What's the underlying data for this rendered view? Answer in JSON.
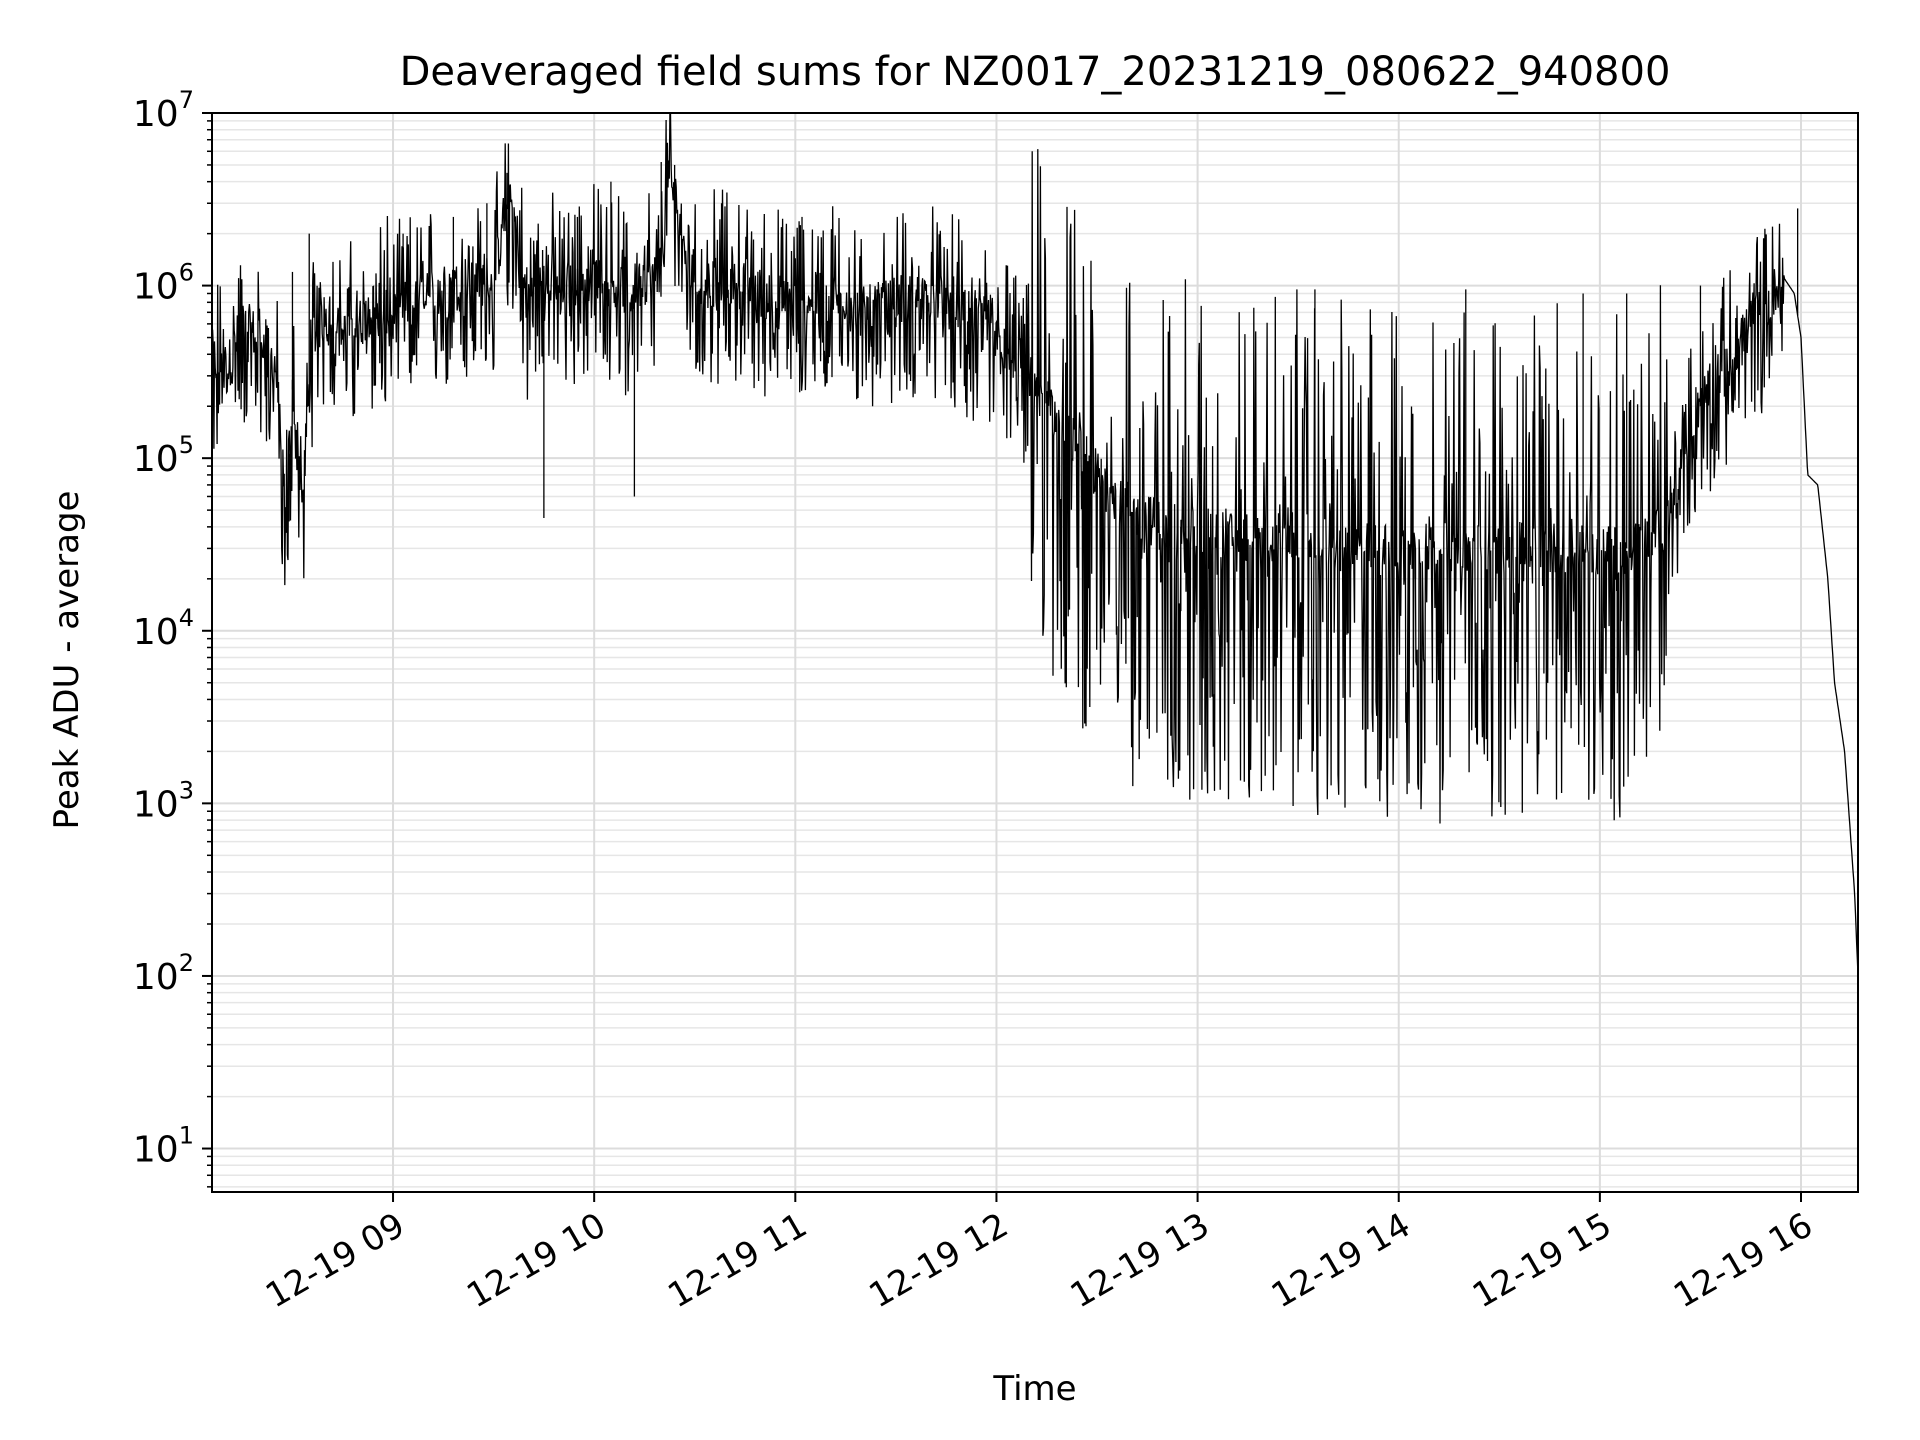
{
  "chart_data": {
    "type": "line",
    "title": "Deaveraged field sums for NZ0017_20231219_080622_940800",
    "xlabel": "Time",
    "ylabel": "Peak ADU - average",
    "y_scale": "log",
    "ylim": [
      5.6,
      10000000
    ],
    "xlim": [
      "2023-12-19 08:06",
      "2023-12-19 16:17"
    ],
    "grid": "major and minor, light gray",
    "line_color": "#000000",
    "x_ticks": [
      {
        "label": "12-19 09",
        "time": "2023-12-19 09:00"
      },
      {
        "label": "12-19 10",
        "time": "2023-12-19 10:00"
      },
      {
        "label": "12-19 11",
        "time": "2023-12-19 11:00"
      },
      {
        "label": "12-19 12",
        "time": "2023-12-19 12:00"
      },
      {
        "label": "12-19 13",
        "time": "2023-12-19 13:00"
      },
      {
        "label": "12-19 14",
        "time": "2023-12-19 14:00"
      },
      {
        "label": "12-19 15",
        "time": "2023-12-19 15:00"
      },
      {
        "label": "12-19 16",
        "time": "2023-12-19 16:00"
      }
    ],
    "y_ticks": [
      {
        "base": "10",
        "exp": "1",
        "value": 10
      },
      {
        "base": "10",
        "exp": "2",
        "value": 100
      },
      {
        "base": "10",
        "exp": "3",
        "value": 1000
      },
      {
        "base": "10",
        "exp": "4",
        "value": 10000
      },
      {
        "base": "10",
        "exp": "5",
        "value": 100000
      },
      {
        "base": "10",
        "exp": "6",
        "value": 1000000
      },
      {
        "base": "10",
        "exp": "7",
        "value": 10000000
      }
    ],
    "series": [
      {
        "points": [
          [
            "2023-12-19 08:06",
            400000
          ],
          [
            "2023-12-19 08:10",
            300000
          ],
          [
            "2023-12-19 08:15",
            600000
          ],
          [
            "2023-12-19 08:20",
            500000
          ],
          [
            "2023-12-19 08:25",
            350000
          ],
          [
            "2023-12-19 08:28",
            45000
          ],
          [
            "2023-12-19 08:30",
            250000
          ],
          [
            "2023-12-19 08:33",
            60000
          ],
          [
            "2023-12-19 08:36",
            500000
          ],
          [
            "2023-12-19 08:40",
            700000
          ],
          [
            "2023-12-19 08:45",
            500000
          ],
          [
            "2023-12-19 08:50",
            600000
          ],
          [
            "2023-12-19 08:55",
            800000
          ],
          [
            "2023-12-19 09:00",
            700000
          ],
          [
            "2023-12-19 09:10",
            900000
          ],
          [
            "2023-12-19 09:20",
            1000000
          ],
          [
            "2023-12-19 09:30",
            1100000
          ],
          [
            "2023-12-19 09:35",
            3500000
          ],
          [
            "2023-12-19 09:40",
            800000
          ],
          [
            "2023-12-19 09:45",
            1300000
          ],
          [
            "2023-12-19 09:50",
            900000
          ],
          [
            "2023-12-19 10:00",
            1200000
          ],
          [
            "2023-12-19 10:10",
            900000
          ],
          [
            "2023-12-19 10:20",
            1300000
          ],
          [
            "2023-12-19 10:22",
            5000000
          ],
          [
            "2023-12-19 10:30",
            1000000
          ],
          [
            "2023-12-19 10:40",
            1100000
          ],
          [
            "2023-12-19 10:50",
            900000
          ],
          [
            "2023-12-19 11:00",
            800000
          ],
          [
            "2023-12-19 11:10",
            900000
          ],
          [
            "2023-12-19 11:20",
            700000
          ],
          [
            "2023-12-19 11:30",
            800000
          ],
          [
            "2023-12-19 11:40",
            900000
          ],
          [
            "2023-12-19 11:50",
            700000
          ],
          [
            "2023-12-19 12:00",
            500000
          ],
          [
            "2023-12-19 12:10",
            300000
          ],
          [
            "2023-12-19 12:20",
            150000
          ],
          [
            "2023-12-19 12:30",
            80000
          ],
          [
            "2023-12-19 12:40",
            50000
          ],
          [
            "2023-12-19 12:50",
            40000
          ],
          [
            "2023-12-19 13:00",
            40000
          ],
          [
            "2023-12-19 13:15",
            35000
          ],
          [
            "2023-12-19 13:30",
            35000
          ],
          [
            "2023-12-19 13:45",
            30000
          ],
          [
            "2023-12-19 14:00",
            30000
          ],
          [
            "2023-12-19 14:15",
            30000
          ],
          [
            "2023-12-19 14:30",
            30000
          ],
          [
            "2023-12-19 14:45",
            30000
          ],
          [
            "2023-12-19 15:00",
            30000
          ],
          [
            "2023-12-19 15:10",
            30000
          ],
          [
            "2023-12-19 15:20",
            40000
          ],
          [
            "2023-12-19 15:25",
            100000
          ],
          [
            "2023-12-19 15:30",
            200000
          ],
          [
            "2023-12-19 15:35",
            300000
          ],
          [
            "2023-12-19 15:40",
            400000
          ],
          [
            "2023-12-19 15:45",
            600000
          ],
          [
            "2023-12-19 15:50",
            800000
          ],
          [
            "2023-12-19 15:55",
            1100000
          ],
          [
            "2023-12-19 15:58",
            900000
          ],
          [
            "2023-12-19 16:00",
            500000
          ],
          [
            "2023-12-19 16:02",
            80000
          ],
          [
            "2023-12-19 16:05",
            70000
          ],
          [
            "2023-12-19 16:08",
            20000
          ],
          [
            "2023-12-19 16:10",
            5000
          ],
          [
            "2023-12-19 16:13",
            2000
          ],
          [
            "2023-12-19 16:16",
            300
          ],
          [
            "2023-12-19 16:17",
            100
          ]
        ],
        "spikes": [
          [
            "2023-12-19 08:30",
            1200000
          ],
          [
            "2023-12-19 08:35",
            2000000
          ],
          [
            "2023-12-19 09:03",
            2000000
          ],
          [
            "2023-12-19 09:18",
            2500000
          ],
          [
            "2023-12-19 09:28",
            3000000
          ],
          [
            "2023-12-19 09:34",
            4500000
          ],
          [
            "2023-12-19 09:55",
            2500000
          ],
          [
            "2023-12-19 10:05",
            4000000
          ],
          [
            "2023-12-19 10:20",
            5200000
          ],
          [
            "2023-12-19 10:24",
            5000000
          ],
          [
            "2023-12-19 10:38",
            3000000
          ],
          [
            "2023-12-19 11:02",
            2500000
          ],
          [
            "2023-12-19 15:59",
            2800000
          ],
          [
            "2023-12-19 08:29",
            43000
          ],
          [
            "2023-12-19 09:45",
            45000
          ],
          [
            "2023-12-19 10:12",
            60000
          ],
          [
            "2023-12-19 12:42",
            12000
          ],
          [
            "2023-12-19 12:55",
            13000
          ],
          [
            "2023-12-19 13:35",
            950000
          ],
          [
            "2023-12-19 14:20",
            950000
          ],
          [
            "2023-12-19 14:55",
            900000
          ],
          [
            "2023-12-19 15:08",
            900000
          ],
          [
            "2023-12-19 15:30",
            1000000
          ],
          [
            "2023-12-19 14:05",
            20000
          ],
          [
            "2023-12-19 15:05",
            17000
          ]
        ]
      }
    ]
  }
}
